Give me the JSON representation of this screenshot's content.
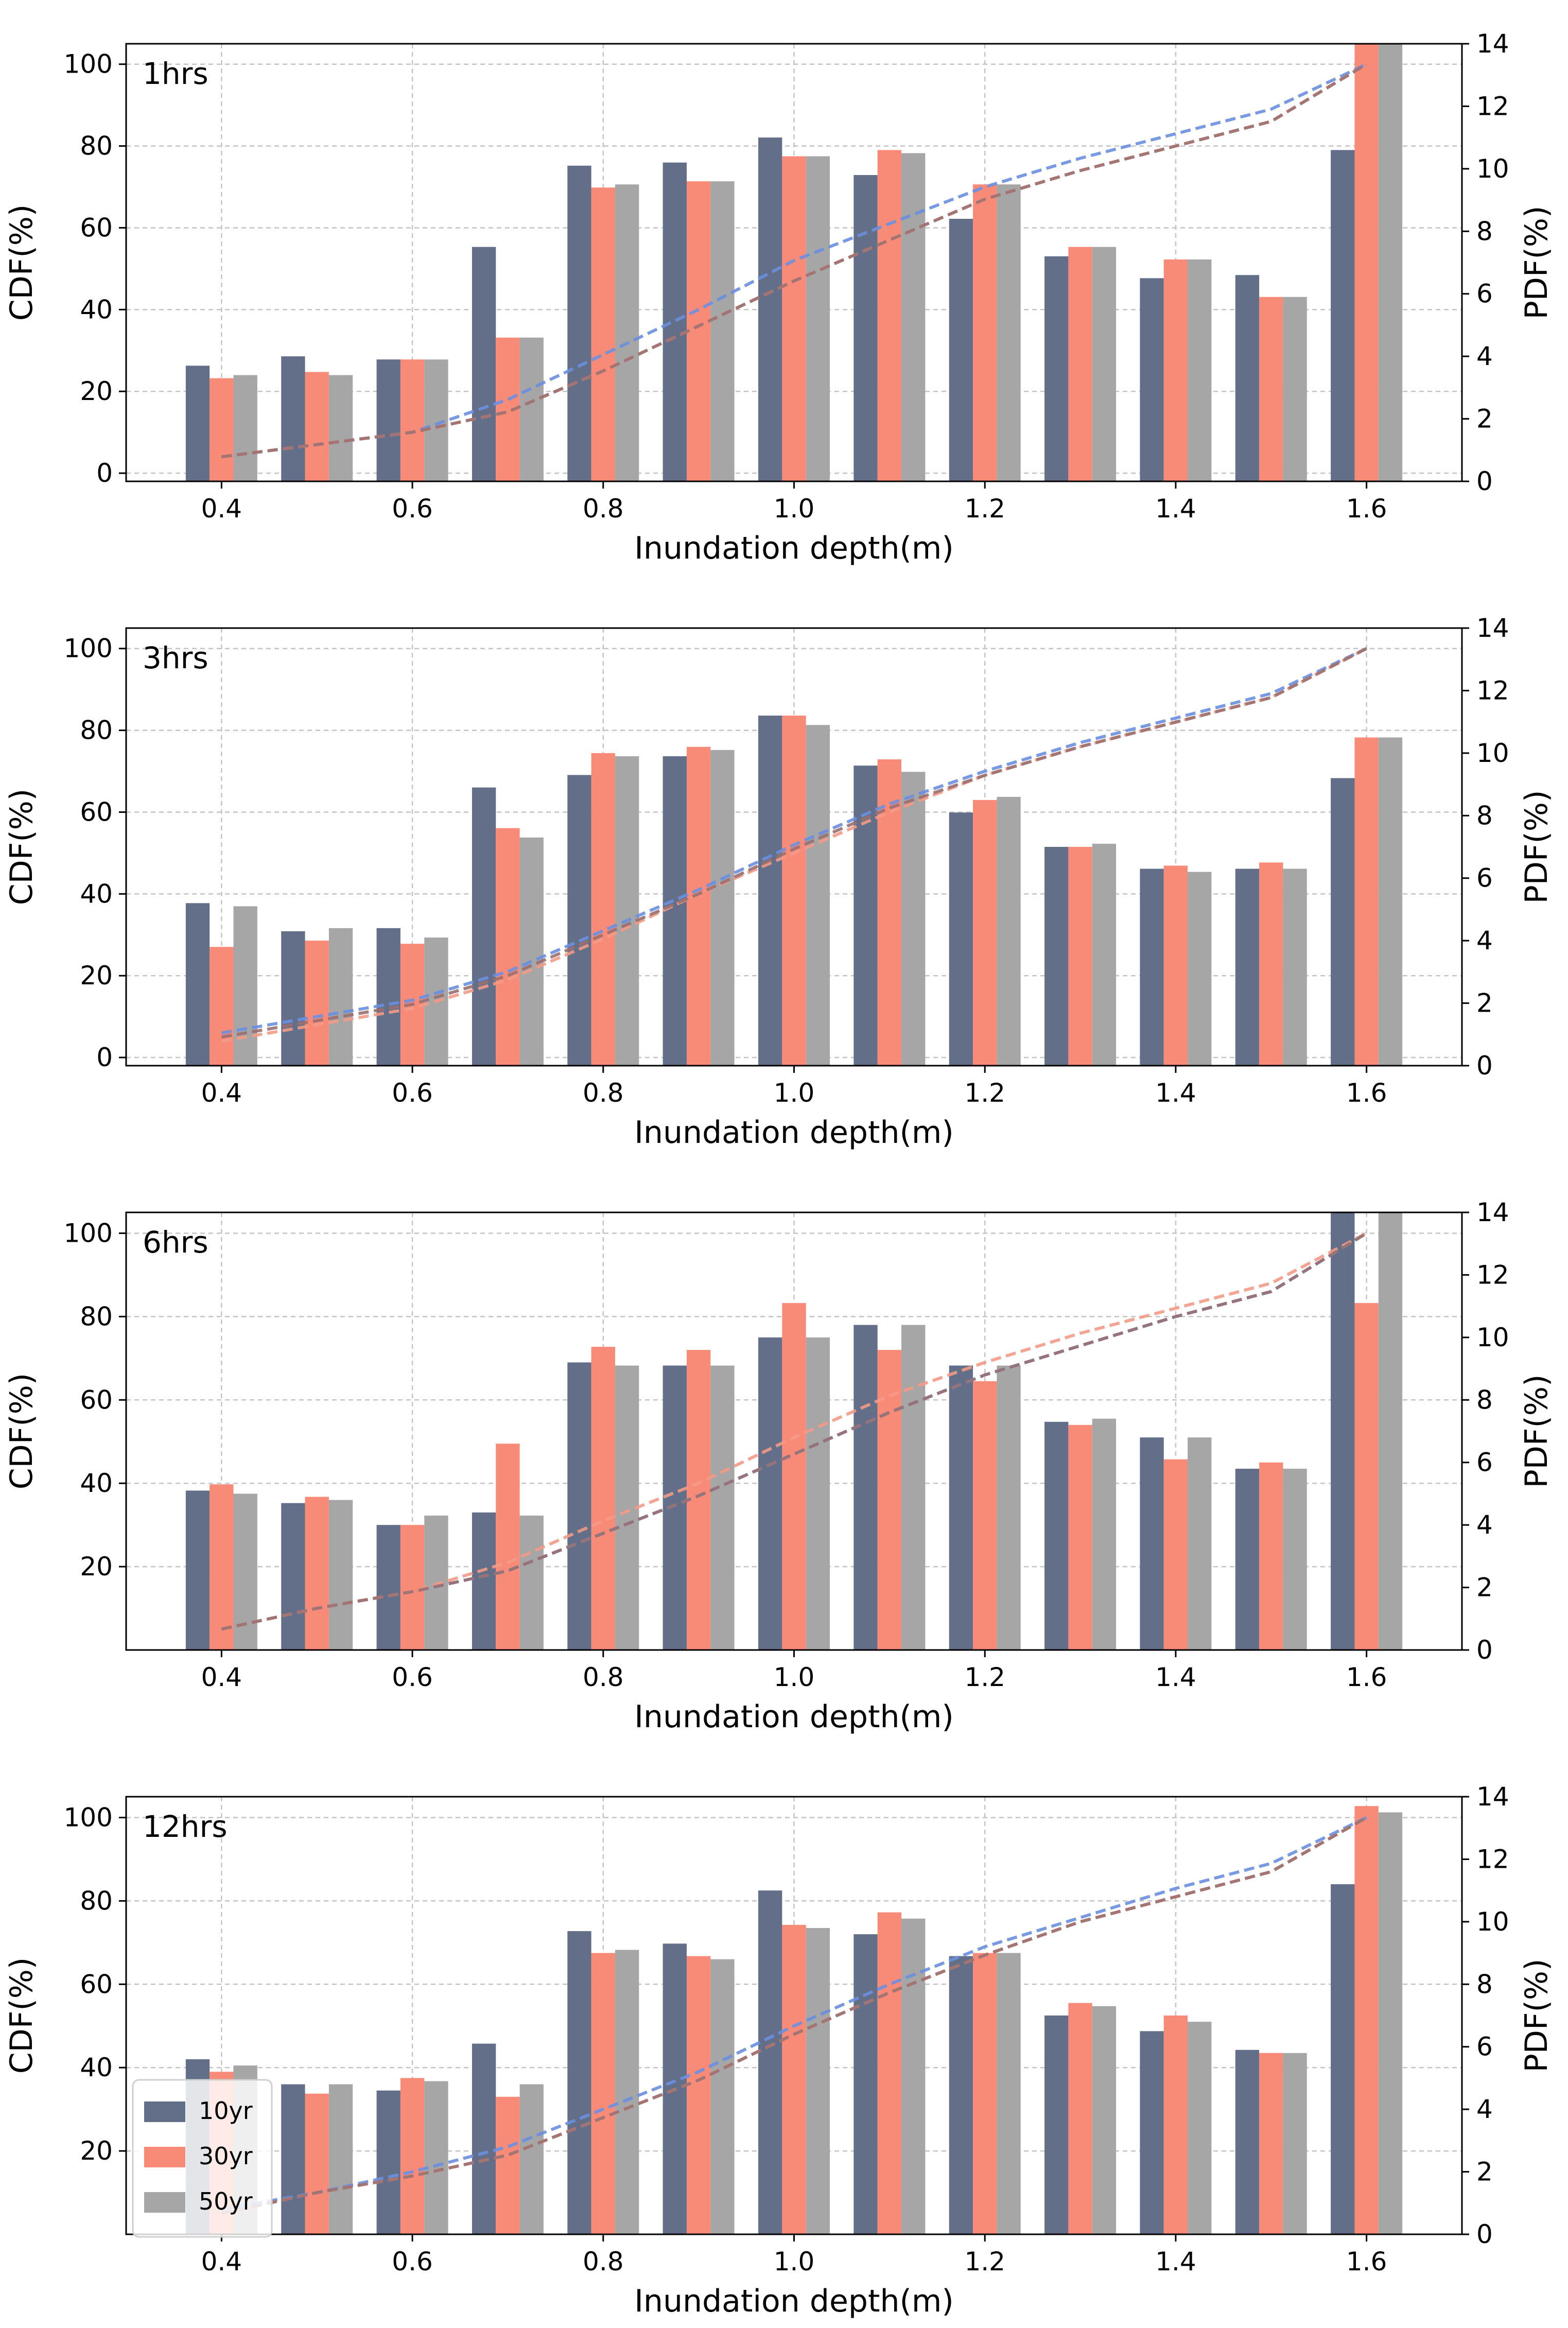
{
  "figure": {
    "x_label": "Inundation depth(m)",
    "y_left_label": "CDF(%)",
    "y_right_label": "PDF(%)"
  },
  "legend": [
    "10yr",
    "30yr",
    "50yr"
  ],
  "colors": {
    "bar_10yr": "#636E88",
    "bar_30yr": "#F88A78",
    "bar_50yr": "#A6A6A6",
    "cdf_10yr": "#6A8FE0",
    "cdf_30yr": "#F29A86",
    "cdf_50yr": "#9A7070",
    "grid": "#C4C4C4"
  },
  "chart_data": [
    {
      "type": "bar",
      "title": "1hrs",
      "xlabel": "Inundation depth(m)",
      "ylabel_left": "CDF(%)",
      "ylabel_right": "PDF(%)",
      "x": [
        0.4,
        0.5,
        0.6,
        0.7,
        0.8,
        0.9,
        1.0,
        1.1,
        1.2,
        1.3,
        1.4,
        1.5,
        1.6
      ],
      "xticks": [
        "0.4",
        "0.6",
        "0.8",
        "1.0",
        "1.2",
        "1.4",
        "1.6"
      ],
      "xlim": [
        0.3,
        1.7
      ],
      "yticks_left": [
        "0",
        "20",
        "40",
        "60",
        "80",
        "100"
      ],
      "ylim_left": [
        -2,
        105
      ],
      "yticks_right": [
        "0",
        "2",
        "4",
        "6",
        "8",
        "10",
        "12",
        "14"
      ],
      "ylim_right": [
        0,
        14
      ],
      "pdf_series": [
        {
          "name": "10yr",
          "values": [
            3.7,
            4.0,
            3.9,
            7.5,
            10.1,
            10.2,
            11.0,
            9.8,
            8.4,
            7.2,
            6.5,
            6.6,
            10.6
          ]
        },
        {
          "name": "30yr",
          "values": [
            3.3,
            3.5,
            3.9,
            4.6,
            9.4,
            9.6,
            10.4,
            10.6,
            9.5,
            7.5,
            7.1,
            5.9,
            14.0
          ]
        },
        {
          "name": "50yr",
          "values": [
            3.4,
            3.4,
            3.9,
            4.6,
            9.5,
            9.6,
            10.4,
            10.5,
            9.5,
            7.5,
            7.1,
            5.9,
            14.0
          ]
        }
      ],
      "cdf_series": [
        {
          "name": "10yr",
          "values": [
            4,
            7,
            10,
            18,
            29,
            40,
            52,
            61,
            70,
            77,
            83,
            89,
            100
          ]
        },
        {
          "name": "30yr",
          "values": [
            4,
            7,
            10,
            15,
            25,
            36,
            47,
            57,
            67,
            74,
            80,
            86,
            100
          ]
        },
        {
          "name": "50yr",
          "values": [
            4,
            7,
            10,
            15,
            25,
            36,
            47,
            57,
            67,
            74,
            80,
            86,
            100
          ]
        }
      ]
    },
    {
      "type": "bar",
      "title": "3hrs",
      "xlabel": "Inundation depth(m)",
      "ylabel_left": "CDF(%)",
      "ylabel_right": "PDF(%)",
      "x": [
        0.4,
        0.5,
        0.6,
        0.7,
        0.8,
        0.9,
        1.0,
        1.1,
        1.2,
        1.3,
        1.4,
        1.5,
        1.6
      ],
      "xticks": [
        "0.4",
        "0.6",
        "0.8",
        "1.0",
        "1.2",
        "1.4",
        "1.6"
      ],
      "xlim": [
        0.3,
        1.7
      ],
      "yticks_left": [
        "0",
        "20",
        "40",
        "60",
        "80",
        "100"
      ],
      "ylim_left": [
        -2,
        105
      ],
      "yticks_right": [
        "0",
        "2",
        "4",
        "6",
        "8",
        "10",
        "12",
        "14"
      ],
      "ylim_right": [
        0,
        14
      ],
      "pdf_series": [
        {
          "name": "10yr",
          "values": [
            5.2,
            4.3,
            4.4,
            8.9,
            9.3,
            9.9,
            11.2,
            9.6,
            8.1,
            7.0,
            6.3,
            6.3,
            9.2
          ]
        },
        {
          "name": "30yr",
          "values": [
            3.8,
            4.0,
            3.9,
            7.6,
            10.0,
            10.2,
            11.2,
            9.8,
            8.5,
            7.0,
            6.4,
            6.5,
            10.5
          ]
        },
        {
          "name": "50yr",
          "values": [
            5.1,
            4.4,
            4.1,
            7.3,
            9.9,
            10.1,
            10.9,
            9.4,
            8.6,
            7.1,
            6.2,
            6.3,
            10.5
          ]
        }
      ],
      "cdf_series": [
        {
          "name": "10yr",
          "values": [
            6,
            10,
            14,
            21,
            31,
            41,
            52,
            62,
            70,
            77,
            83,
            89,
            100
          ]
        },
        {
          "name": "30yr",
          "values": [
            4,
            8,
            12,
            19,
            29,
            40,
            50,
            60,
            69,
            76,
            82,
            88,
            100
          ]
        },
        {
          "name": "50yr",
          "values": [
            5,
            9,
            13,
            20,
            30,
            40,
            51,
            61,
            69,
            76,
            82,
            88,
            100
          ]
        }
      ]
    },
    {
      "type": "bar",
      "title": "6hrs",
      "xlabel": "Inundation depth(m)",
      "ylabel_left": "CDF(%)",
      "ylabel_right": "PDF(%)",
      "x": [
        0.4,
        0.5,
        0.6,
        0.7,
        0.8,
        0.9,
        1.0,
        1.1,
        1.2,
        1.3,
        1.4,
        1.5,
        1.6
      ],
      "xticks": [
        "0.4",
        "0.6",
        "0.8",
        "1.0",
        "1.2",
        "1.4",
        "1.6"
      ],
      "xlim": [
        0.3,
        1.7
      ],
      "yticks_left": [
        "20",
        "40",
        "60",
        "80",
        "100"
      ],
      "ylim_left": [
        0,
        105
      ],
      "yticks_right": [
        "0",
        "2",
        "4",
        "6",
        "8",
        "10",
        "12",
        "14"
      ],
      "ylim_right": [
        0,
        14
      ],
      "pdf_series": [
        {
          "name": "10yr",
          "values": [
            5.1,
            4.7,
            4.0,
            4.4,
            9.2,
            9.1,
            10.0,
            10.4,
            9.1,
            7.3,
            6.8,
            5.8,
            14.0
          ]
        },
        {
          "name": "30yr",
          "values": [
            5.3,
            4.9,
            4.0,
            6.6,
            9.7,
            9.6,
            11.1,
            9.6,
            8.6,
            7.2,
            6.1,
            6.0,
            11.1
          ]
        },
        {
          "name": "50yr",
          "values": [
            5.0,
            4.8,
            4.3,
            4.3,
            9.1,
            9.1,
            10.0,
            10.4,
            9.1,
            7.4,
            6.8,
            5.8,
            14.0
          ]
        }
      ],
      "cdf_series": [
        {
          "name": "10yr",
          "values": [
            5,
            10,
            14,
            19,
            28,
            37,
            47,
            57,
            66,
            73,
            80,
            86,
            100
          ]
        },
        {
          "name": "30yr",
          "values": [
            5,
            10,
            14,
            21,
            31,
            40,
            51,
            61,
            69,
            76,
            82,
            88,
            100
          ]
        },
        {
          "name": "50yr",
          "values": [
            5,
            10,
            14,
            19,
            28,
            37,
            47,
            57,
            66,
            73,
            80,
            86,
            100
          ]
        }
      ]
    },
    {
      "type": "bar",
      "title": "12hrs",
      "xlabel": "Inundation depth(m)",
      "ylabel_left": "CDF(%)",
      "ylabel_right": "PDF(%)",
      "x": [
        0.4,
        0.5,
        0.6,
        0.7,
        0.8,
        0.9,
        1.0,
        1.1,
        1.2,
        1.3,
        1.4,
        1.5,
        1.6
      ],
      "xticks": [
        "0.4",
        "0.6",
        "0.8",
        "1.0",
        "1.2",
        "1.4",
        "1.6"
      ],
      "xlim": [
        0.3,
        1.7
      ],
      "yticks_left": [
        "20",
        "40",
        "60",
        "80",
        "100"
      ],
      "ylim_left": [
        0,
        105
      ],
      "yticks_right": [
        "0",
        "2",
        "4",
        "6",
        "8",
        "10",
        "12",
        "14"
      ],
      "ylim_right": [
        0,
        14
      ],
      "pdf_series": [
        {
          "name": "10yr",
          "values": [
            5.6,
            4.8,
            4.6,
            6.1,
            9.7,
            9.3,
            11.0,
            9.6,
            8.9,
            7.0,
            6.5,
            5.9,
            11.2
          ]
        },
        {
          "name": "30yr",
          "values": [
            5.2,
            4.5,
            5.0,
            4.4,
            9.0,
            8.9,
            9.9,
            10.3,
            9.0,
            7.4,
            7.0,
            5.8,
            13.7
          ]
        },
        {
          "name": "50yr",
          "values": [
            5.4,
            4.8,
            4.9,
            4.8,
            9.1,
            8.8,
            9.8,
            10.1,
            9.0,
            7.3,
            6.8,
            5.8,
            13.5
          ]
        }
      ],
      "cdf_series": [
        {
          "name": "10yr",
          "values": [
            6,
            10,
            15,
            21,
            30,
            39,
            50,
            60,
            69,
            76,
            83,
            89,
            100
          ]
        },
        {
          "name": "30yr",
          "values": [
            5,
            10,
            14,
            19,
            28,
            37,
            48,
            58,
            67,
            75,
            81,
            87,
            100
          ]
        },
        {
          "name": "50yr",
          "values": [
            5,
            10,
            14,
            19,
            28,
            37,
            48,
            58,
            67,
            75,
            81,
            87,
            100
          ]
        }
      ]
    }
  ]
}
